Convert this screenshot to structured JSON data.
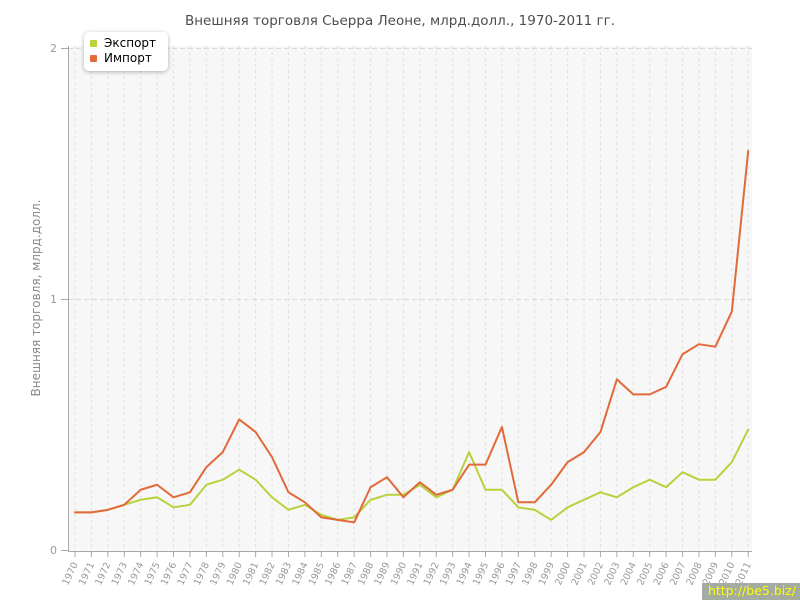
{
  "title": "Внешняя торговля Сьерра Леоне, млрд.долл., 1970-2011 гг.",
  "watermark": "http://be5.biz/",
  "chart_data": {
    "type": "line",
    "title": "Внешняя торговля Сьерра Леоне, млрд.долл., 1970-2011 гг.",
    "xlabel": "",
    "ylabel": "Внешняя торговля, млрд.долл.",
    "ylim": [
      0,
      2
    ],
    "yticks": [
      0,
      1,
      2
    ],
    "grid": "vertical dashed gridline per year; horizontal dashed lines at 1 and 2",
    "legend_position": "top-left",
    "x": [
      1970,
      1971,
      1972,
      1973,
      1974,
      1975,
      1976,
      1977,
      1978,
      1979,
      1980,
      1981,
      1982,
      1983,
      1984,
      1985,
      1986,
      1987,
      1988,
      1989,
      1990,
      1991,
      1992,
      1993,
      1994,
      1995,
      1996,
      1997,
      1998,
      1999,
      2000,
      2001,
      2002,
      2003,
      2004,
      2005,
      2006,
      2007,
      2008,
      2009,
      2010,
      2011
    ],
    "series": [
      {
        "name": "Экспорт",
        "color": "#b7d23c",
        "values": [
          0.15,
          0.15,
          0.16,
          0.18,
          0.2,
          0.21,
          0.17,
          0.18,
          0.26,
          0.28,
          0.32,
          0.28,
          0.21,
          0.16,
          0.18,
          0.14,
          0.12,
          0.13,
          0.2,
          0.22,
          0.22,
          0.26,
          0.21,
          0.24,
          0.39,
          0.24,
          0.24,
          0.17,
          0.16,
          0.12,
          0.17,
          0.2,
          0.23,
          0.21,
          0.25,
          0.28,
          0.25,
          0.31,
          0.28,
          0.28,
          0.35,
          0.48
        ]
      },
      {
        "name": "Импорт",
        "color": "#e1693a",
        "values": [
          0.15,
          0.15,
          0.16,
          0.18,
          0.24,
          0.26,
          0.21,
          0.23,
          0.33,
          0.39,
          0.52,
          0.47,
          0.37,
          0.23,
          0.19,
          0.13,
          0.12,
          0.11,
          0.25,
          0.29,
          0.21,
          0.27,
          0.22,
          0.24,
          0.34,
          0.34,
          0.49,
          0.19,
          0.19,
          0.26,
          0.35,
          0.39,
          0.47,
          0.68,
          0.62,
          0.62,
          0.65,
          0.78,
          0.82,
          0.81,
          0.95,
          1.59
        ]
      }
    ]
  }
}
